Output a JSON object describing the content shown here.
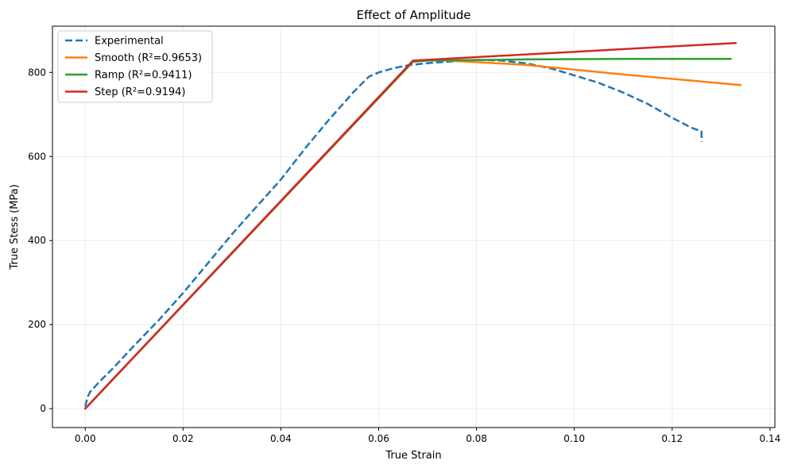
{
  "chart_data": {
    "type": "line",
    "title": "Effect of Amplitude",
    "xlabel": "True Strain",
    "ylabel": "True Stess (MPa)",
    "xlim": [
      -0.0067,
      0.141
    ],
    "ylim": [
      -45,
      910
    ],
    "xticks": [
      0.0,
      0.02,
      0.04,
      0.06,
      0.08,
      0.1,
      0.12,
      0.14
    ],
    "xtick_labels": [
      "0.00",
      "0.02",
      "0.04",
      "0.06",
      "0.08",
      "0.10",
      "0.12",
      "0.14"
    ],
    "yticks": [
      0,
      200,
      400,
      600,
      800
    ],
    "ytick_labels": [
      "0",
      "200",
      "400",
      "600",
      "800"
    ],
    "grid": true,
    "legend_position": "top-left",
    "series": [
      {
        "name": "Experimental",
        "color": "#1f77b4",
        "dash": true,
        "x": [
          0.0,
          0.0005,
          0.001,
          0.003,
          0.006,
          0.01,
          0.015,
          0.02,
          0.025,
          0.03,
          0.035,
          0.04,
          0.045,
          0.05,
          0.055,
          0.058,
          0.06,
          0.063,
          0.066,
          0.07,
          0.075,
          0.08,
          0.085,
          0.09,
          0.095,
          0.1,
          0.105,
          0.11,
          0.115,
          0.12,
          0.124,
          0.126,
          0.126
        ],
        "y": [
          5,
          28,
          40,
          65,
          100,
          150,
          210,
          275,
          345,
          415,
          480,
          545,
          620,
          690,
          755,
          790,
          800,
          810,
          817,
          822,
          826,
          830,
          828,
          822,
          810,
          793,
          775,
          752,
          725,
          692,
          668,
          660,
          635
        ]
      },
      {
        "name": "Smooth (R²=0.9653)",
        "color": "#ff7f0e",
        "dash": false,
        "x": [
          0.0,
          0.067,
          0.071,
          0.09,
          0.11,
          0.134
        ],
        "y": [
          0,
          825,
          830,
          818,
          795,
          770
        ]
      },
      {
        "name": "Ramp (R²=0.9411)",
        "color": "#2ca02c",
        "dash": false,
        "x": [
          0.0,
          0.067,
          0.07,
          0.09,
          0.11,
          0.132
        ],
        "y": [
          0,
          826,
          828,
          831,
          832,
          832
        ]
      },
      {
        "name": "Step (R²=0.9194)",
        "color": "#d62728",
        "dash": false,
        "x": [
          0.0,
          0.067,
          0.133
        ],
        "y": [
          0,
          828,
          870
        ]
      }
    ]
  }
}
